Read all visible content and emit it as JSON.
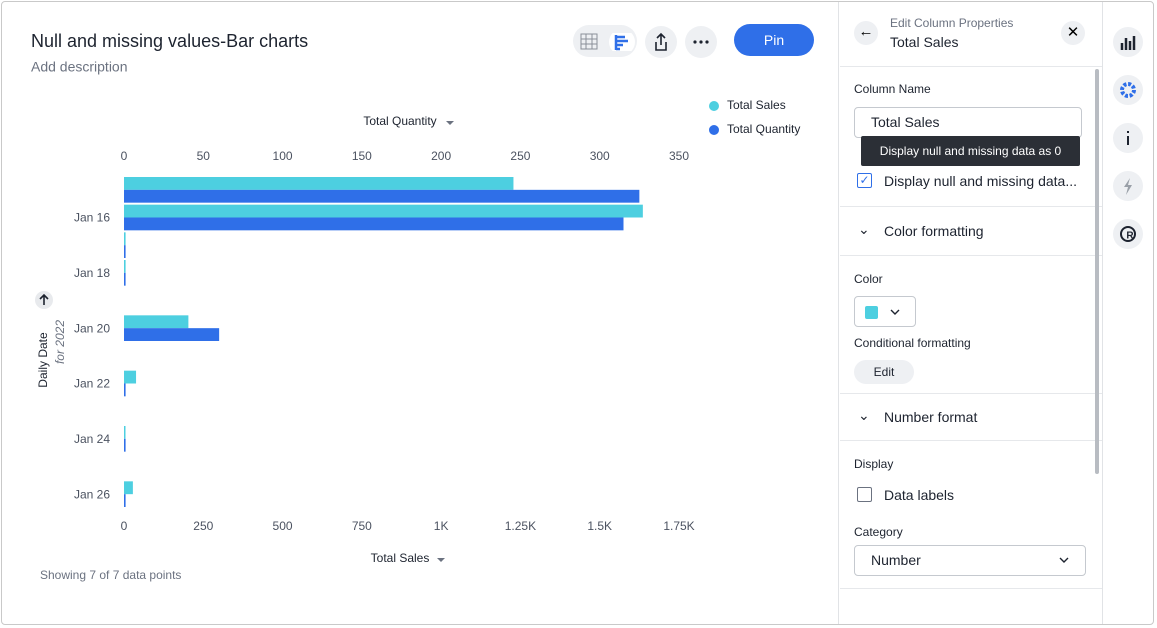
{
  "chart_data": {
    "type": "bar",
    "orientation": "horizontal",
    "title": "Null and missing values-Bar charts",
    "subtitle": "Add description",
    "categories": [
      null,
      "Jan 16",
      null,
      "Jan 18",
      null,
      "Jan 20",
      null,
      "Jan 22",
      null,
      "Jan 24",
      null,
      "Jan 26"
    ],
    "series": [
      {
        "name": "Total Sales",
        "color": "#4dcfe0",
        "values": [
          1228,
          1636,
          5,
          5,
          null,
          203,
          null,
          38,
          null,
          4,
          null,
          28
        ]
      },
      {
        "name": "Total Quantity",
        "color": "#2f6fe8",
        "axis": "x2",
        "values": [
          325,
          315,
          1,
          1,
          null,
          60,
          null,
          1,
          null,
          1,
          null,
          1
        ]
      }
    ],
    "x_label": "Total Sales",
    "x2_label": "Total Quantity",
    "y_label": "Daily Date",
    "y_sublabel": "for 2022",
    "xlim": [
      0,
      1750
    ],
    "xticks": [
      0,
      250,
      500,
      750,
      {
        "value": 1000,
        "label": "1K"
      },
      {
        "value": 1250,
        "label": "1.25K"
      },
      {
        "value": 1500,
        "label": "1.5K"
      },
      {
        "value": 1750,
        "label": "1.75K"
      }
    ],
    "x2lim": [
      0,
      350
    ],
    "x2ticks": [
      0,
      50,
      100,
      150,
      200,
      250,
      300,
      350
    ],
    "grid": false,
    "legend": "top-right",
    "footnote": "Showing 7 of 7 data points"
  },
  "toolbar": {
    "pin": "Pin"
  },
  "panel": {
    "header": "Edit Column Properties",
    "column": "Total Sales",
    "column_name_label": "Column Name",
    "column_name_value": "Total Sales",
    "tooltip": "Display null and missing data as 0",
    "null_checkbox": "Display null and missing data...",
    "color_section": "Color formatting",
    "color_label": "Color",
    "conditional_label": "Conditional formatting",
    "edit_button": "Edit",
    "number_section": "Number format",
    "display_label": "Display",
    "data_labels": "Data labels",
    "category_label": "Category",
    "category_value": "Number"
  }
}
